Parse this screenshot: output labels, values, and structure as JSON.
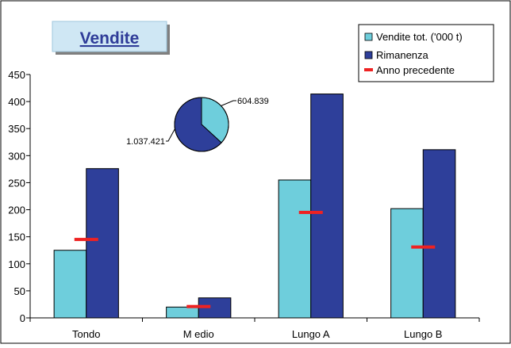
{
  "chart_data": [
    {
      "type": "bar",
      "title": "Vendite",
      "categories": [
        "Tondo",
        "M edio",
        "Lungo A",
        "Lungo B"
      ],
      "series": [
        {
          "name": "Vendite tot. ('000 t)",
          "values": [
            125,
            20,
            255,
            202
          ]
        },
        {
          "name": "Rimanenza",
          "values": [
            276,
            37,
            414,
            311
          ]
        },
        {
          "name": "Anno precedente",
          "values": [
            145,
            21,
            195,
            131
          ]
        }
      ],
      "ylim": [
        0,
        450
      ],
      "yticks": [
        0,
        50,
        100,
        150,
        200,
        250,
        300,
        350,
        400,
        450
      ],
      "legend": "top-right",
      "grid": false,
      "colors": {
        "vendite": "#6ecedc",
        "rimanenza": "#2e3f9a",
        "anno_precedente": "#ee2222",
        "title": "#2e3b98",
        "title_box": "#cfe7f4"
      }
    },
    {
      "type": "pie",
      "values": [
        604839,
        1037421
      ],
      "labels": [
        "604.839",
        "1.037.421"
      ],
      "colors": [
        "#6ecedc",
        "#2e3f9a"
      ]
    }
  ]
}
